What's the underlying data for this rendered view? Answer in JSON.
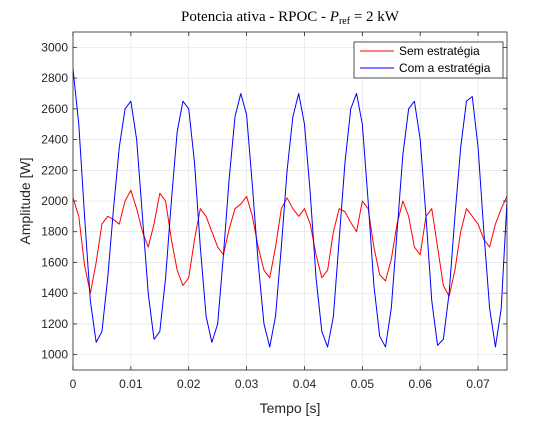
{
  "chart_data": {
    "type": "line",
    "title_main": "Potencia ativa - RPOC - ",
    "title_symbol": "P",
    "title_subscript": "ref",
    "title_tail": " = 2 kW",
    "xlabel": "Tempo [s]",
    "ylabel": "Amplitude [W]",
    "xlim": [
      0,
      0.075
    ],
    "ylim": [
      900,
      3100
    ],
    "xticks": [
      0,
      0.01,
      0.02,
      0.03,
      0.04,
      0.05,
      0.06,
      0.07
    ],
    "xtick_labels": [
      "0",
      "0.01",
      "0.02",
      "0.03",
      "0.04",
      "0.05",
      "0.06",
      "0.07"
    ],
    "yticks": [
      1000,
      1200,
      1400,
      1600,
      1800,
      2000,
      2200,
      2400,
      2600,
      2800,
      3000
    ],
    "ytick_labels": [
      "1000",
      "1200",
      "1400",
      "1600",
      "1800",
      "2000",
      "2200",
      "2400",
      "2600",
      "2800",
      "3000"
    ],
    "grid": true,
    "legend_position": "top-right",
    "series": [
      {
        "name": "Sem estratégia",
        "color": "#ff0000",
        "x": [
          0,
          0.001,
          0.002,
          0.003,
          0.004,
          0.005,
          0.006,
          0.007,
          0.008,
          0.009,
          0.01,
          0.011,
          0.012,
          0.013,
          0.014,
          0.015,
          0.016,
          0.017,
          0.018,
          0.019,
          0.02,
          0.021,
          0.022,
          0.023,
          0.024,
          0.025,
          0.026,
          0.027,
          0.028,
          0.029,
          0.03,
          0.031,
          0.032,
          0.033,
          0.034,
          0.035,
          0.036,
          0.037,
          0.038,
          0.039,
          0.04,
          0.041,
          0.042,
          0.043,
          0.044,
          0.045,
          0.046,
          0.047,
          0.048,
          0.049,
          0.05,
          0.051,
          0.052,
          0.053,
          0.054,
          0.055,
          0.056,
          0.057,
          0.058,
          0.059,
          0.06,
          0.061,
          0.062,
          0.063,
          0.064,
          0.065,
          0.066,
          0.067,
          0.068,
          0.069,
          0.07,
          0.071,
          0.072,
          0.073,
          0.074,
          0.075
        ],
        "values": [
          2020,
          1900,
          1580,
          1400,
          1600,
          1850,
          1900,
          1880,
          1850,
          2000,
          2070,
          1950,
          1800,
          1700,
          1850,
          2050,
          2000,
          1750,
          1550,
          1450,
          1500,
          1750,
          1950,
          1900,
          1800,
          1700,
          1650,
          1820,
          1950,
          1980,
          2030,
          1900,
          1700,
          1550,
          1500,
          1700,
          1950,
          2020,
          1950,
          1900,
          1950,
          1850,
          1650,
          1500,
          1550,
          1800,
          1950,
          1930,
          1860,
          1800,
          2000,
          1950,
          1700,
          1520,
          1480,
          1620,
          1850,
          2000,
          1900,
          1700,
          1650,
          1900,
          1950,
          1700,
          1450,
          1380,
          1550,
          1800,
          1950,
          1900,
          1850,
          1750,
          1700,
          1850,
          1950,
          2030
        ]
      },
      {
        "name": "Com a estratégia",
        "color": "#0000ff",
        "x": [
          0,
          0.001,
          0.002,
          0.003,
          0.004,
          0.005,
          0.006,
          0.007,
          0.008,
          0.009,
          0.01,
          0.011,
          0.012,
          0.013,
          0.014,
          0.015,
          0.016,
          0.017,
          0.018,
          0.019,
          0.02,
          0.021,
          0.022,
          0.023,
          0.024,
          0.025,
          0.026,
          0.027,
          0.028,
          0.029,
          0.03,
          0.031,
          0.032,
          0.033,
          0.034,
          0.035,
          0.036,
          0.037,
          0.038,
          0.039,
          0.04,
          0.041,
          0.042,
          0.043,
          0.044,
          0.045,
          0.046,
          0.047,
          0.048,
          0.049,
          0.05,
          0.051,
          0.052,
          0.053,
          0.054,
          0.055,
          0.056,
          0.057,
          0.058,
          0.059,
          0.06,
          0.061,
          0.062,
          0.063,
          0.064,
          0.065,
          0.066,
          0.067,
          0.068,
          0.069,
          0.07,
          0.071,
          0.072,
          0.073,
          0.074,
          0.075
        ],
        "values": [
          2860,
          2500,
          1900,
          1350,
          1080,
          1150,
          1500,
          1950,
          2350,
          2600,
          2650,
          2400,
          1900,
          1400,
          1100,
          1150,
          1500,
          2000,
          2450,
          2650,
          2600,
          2250,
          1700,
          1250,
          1080,
          1200,
          1650,
          2150,
          2550,
          2700,
          2560,
          2100,
          1600,
          1200,
          1050,
          1250,
          1700,
          2200,
          2550,
          2700,
          2500,
          2050,
          1500,
          1150,
          1050,
          1250,
          1750,
          2250,
          2600,
          2700,
          2500,
          2000,
          1450,
          1120,
          1050,
          1300,
          1800,
          2300,
          2600,
          2650,
          2400,
          1900,
          1350,
          1060,
          1100,
          1400,
          1900,
          2350,
          2650,
          2680,
          2350,
          1800,
          1300,
          1050,
          1300,
          2000
        ]
      }
    ]
  }
}
